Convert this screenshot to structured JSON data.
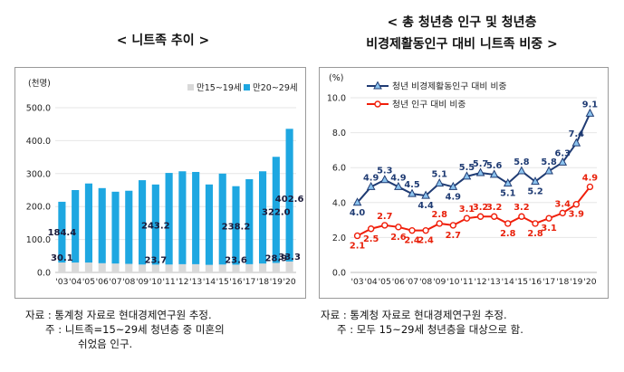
{
  "left": {
    "title": "< 니트족 추이 >",
    "unit": "(천명)",
    "source": "자료 : 통계청 자료로 현대경제연구원 추정.",
    "note1": "주 : 니트족=15~29세 청년층 중 미혼의",
    "note2": "쉬었음 인구.",
    "chart_data": {
      "type": "bar",
      "stacked": true,
      "categories": [
        "'03",
        "'04",
        "'05",
        "'06",
        "'07",
        "'08",
        "'09",
        "'10",
        "'11",
        "'12",
        "'13",
        "'14",
        "'15",
        "'16",
        "'17",
        "'18",
        "'19",
        "'20"
      ],
      "ylim": [
        0,
        500
      ],
      "yticks": [
        "0.0",
        "100.0",
        "200.0",
        "300.0",
        "400.0",
        "500.0"
      ],
      "legend_position": "top-right",
      "series": [
        {
          "name": "만15~19세",
          "color": "#d9d9d9",
          "values": [
            30.1,
            30,
            30,
            28,
            27,
            26,
            24,
            23.7,
            24,
            25,
            25,
            23,
            24,
            23.6,
            25,
            27,
            28.9,
            33.3
          ]
        },
        {
          "name": "만20~29세",
          "color": "#1ea7e1",
          "values": [
            184.4,
            220,
            240,
            228,
            218,
            222,
            256,
            243.2,
            278,
            282,
            280,
            244,
            276,
            238.2,
            258,
            280,
            322.0,
            402.6
          ]
        }
      ],
      "data_labels": [
        {
          "series": 1,
          "index": 0,
          "text": "184.4"
        },
        {
          "series": 0,
          "index": 0,
          "text": "30.1"
        },
        {
          "series": 1,
          "index": 7,
          "text": "243.2"
        },
        {
          "series": 0,
          "index": 7,
          "text": "23.7"
        },
        {
          "series": 1,
          "index": 13,
          "text": "238.2"
        },
        {
          "series": 0,
          "index": 13,
          "text": "23.6"
        },
        {
          "series": 1,
          "index": 16,
          "text": "322.0"
        },
        {
          "series": 0,
          "index": 16,
          "text": "28.9"
        },
        {
          "series": 1,
          "index": 17,
          "text": "402.6"
        },
        {
          "series": 0,
          "index": 17,
          "text": "33.3"
        }
      ]
    }
  },
  "right": {
    "title1": "< 총 청년층 인구 및 청년층",
    "title2": "비경제활동인구 대비 니트족 비중 >",
    "unit": "(%)",
    "source": "자료 : 통계청 자료로 현대경제연구원 추정.",
    "note1": "주 : 모두 15~29세 청년층을 대상으로 함.",
    "chart_data": {
      "type": "line",
      "categories": [
        "'03",
        "'04",
        "'05",
        "'06",
        "'07",
        "'08",
        "'09",
        "'10",
        "'11",
        "'12",
        "'13",
        "'14",
        "'15",
        "'16",
        "'17",
        "'18",
        "'19",
        "'20"
      ],
      "ylim": [
        0,
        10
      ],
      "yticks": [
        "0.0",
        "2.0",
        "4.0",
        "6.0",
        "8.0",
        "10.0"
      ],
      "legend_position": "top-left",
      "series": [
        {
          "name": "청년 비경제활동인구 대비 비중",
          "color": "#1f3b73",
          "marker": "triangle",
          "values": [
            4.0,
            4.9,
            5.3,
            4.9,
            4.5,
            4.4,
            5.1,
            4.9,
            5.5,
            5.7,
            5.6,
            5.1,
            5.8,
            5.2,
            5.8,
            6.3,
            7.4,
            9.1
          ]
        },
        {
          "name": "청년 인구 대비 비중",
          "color": "#f01e0a",
          "marker": "circle",
          "values": [
            2.1,
            2.5,
            2.7,
            2.6,
            2.4,
            2.4,
            2.8,
            2.7,
            3.1,
            3.2,
            3.2,
            2.8,
            3.2,
            2.8,
            3.1,
            3.4,
            3.9,
            4.9
          ]
        }
      ],
      "label_positions": [
        [
          "below",
          "above",
          "above",
          "above",
          "above",
          "below",
          "above",
          "below",
          "above",
          "above",
          "above",
          "below",
          "above",
          "below",
          "above",
          "above",
          "above",
          "above"
        ],
        [
          "below",
          "below",
          "above",
          "below",
          "below",
          "below",
          "above",
          "below",
          "above",
          "above",
          "above",
          "below",
          "above",
          "below",
          "below",
          "above",
          "below",
          "above"
        ]
      ]
    }
  }
}
